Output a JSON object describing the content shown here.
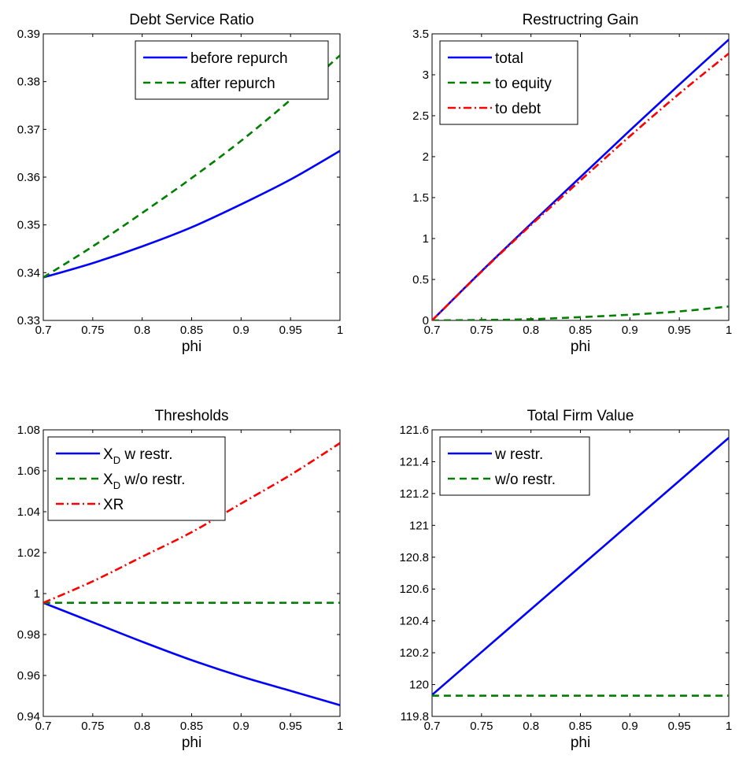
{
  "chart_data": [
    {
      "type": "line",
      "title": "Debt Service Ratio",
      "xlabel": "phi",
      "ylabel": "",
      "xlim": [
        0.7,
        1
      ],
      "ylim": [
        0.33,
        0.39
      ],
      "xticks": [
        "0.7",
        "0.75",
        "0.8",
        "0.85",
        "0.9",
        "0.95",
        "1"
      ],
      "yticks": [
        "0.33",
        "0.34",
        "0.35",
        "0.36",
        "0.37",
        "0.38",
        "0.39"
      ],
      "legend_position": "top-right",
      "x": [
        0.7,
        0.75,
        0.8,
        0.85,
        0.9,
        0.95,
        1.0
      ],
      "series": [
        {
          "name": "before repurch",
          "color": "#0000ff",
          "style": "solid",
          "values": [
            0.339,
            0.342,
            0.3455,
            0.3495,
            0.3543,
            0.3595,
            0.3655
          ]
        },
        {
          "name": "after repurch",
          "color": "#007f00",
          "style": "dashed",
          "values": [
            0.339,
            0.3455,
            0.3525,
            0.3598,
            0.3676,
            0.3762,
            0.3855
          ]
        }
      ]
    },
    {
      "type": "line",
      "title": "Restructring Gain",
      "xlabel": "phi",
      "ylabel": "",
      "xlim": [
        0.7,
        1
      ],
      "ylim": [
        0,
        3.5
      ],
      "xticks": [
        "0.7",
        "0.75",
        "0.8",
        "0.85",
        "0.9",
        "0.95",
        "1"
      ],
      "yticks": [
        "0",
        "0.5",
        "1",
        "1.5",
        "2",
        "2.5",
        "3",
        "3.5"
      ],
      "legend_position": "top-left",
      "x": [
        0.7,
        0.75,
        0.8,
        0.85,
        0.9,
        0.95,
        1.0
      ],
      "series": [
        {
          "name": "total",
          "color": "#0000ff",
          "style": "solid",
          "values": [
            0,
            0.6,
            1.18,
            1.75,
            2.32,
            2.88,
            3.43
          ]
        },
        {
          "name": "to equity",
          "color": "#007f00",
          "style": "dashed",
          "values": [
            0,
            0.005,
            0.015,
            0.04,
            0.07,
            0.11,
            0.17
          ]
        },
        {
          "name": "to debt",
          "color": "#ff0000",
          "style": "dashdot",
          "values": [
            0,
            0.595,
            1.165,
            1.71,
            2.25,
            2.77,
            3.26
          ]
        }
      ]
    },
    {
      "type": "line",
      "title": "Thresholds",
      "xlabel": "phi",
      "ylabel": "",
      "xlim": [
        0.7,
        1
      ],
      "ylim": [
        0.94,
        1.08
      ],
      "xticks": [
        "0.7",
        "0.75",
        "0.8",
        "0.85",
        "0.9",
        "0.95",
        "1"
      ],
      "yticks": [
        "0.94",
        "0.96",
        "0.98",
        "1",
        "1.02",
        "1.04",
        "1.06",
        "1.08"
      ],
      "legend_position": "top-left",
      "x": [
        0.7,
        0.75,
        0.8,
        0.85,
        0.9,
        0.95,
        1.0
      ],
      "series": [
        {
          "name": "X",
          "subscript": "D",
          "suffix": " w restr.",
          "color": "#0000ff",
          "style": "solid",
          "values": [
            0.9955,
            0.986,
            0.9765,
            0.9675,
            0.9595,
            0.9525,
            0.9455
          ]
        },
        {
          "name": "X",
          "subscript": "D",
          "suffix": " w/o restr.",
          "color": "#007f00",
          "style": "dashed",
          "values": [
            0.9955,
            0.9955,
            0.9955,
            0.9955,
            0.9955,
            0.9955,
            0.9955
          ]
        },
        {
          "name": "XR",
          "subscript": "",
          "suffix": "",
          "color": "#ff0000",
          "style": "dashdot",
          "values": [
            0.9955,
            1.006,
            1.018,
            1.03,
            1.044,
            1.058,
            1.0735
          ]
        }
      ]
    },
    {
      "type": "line",
      "title": "Total Firm Value",
      "xlabel": "phi",
      "ylabel": "",
      "xlim": [
        0.7,
        1
      ],
      "ylim": [
        119.8,
        121.6
      ],
      "xticks": [
        "0.7",
        "0.75",
        "0.8",
        "0.85",
        "0.9",
        "0.95",
        "1"
      ],
      "yticks": [
        "119.8",
        "120",
        "120.2",
        "120.4",
        "120.6",
        "120.8",
        "121",
        "121.2",
        "121.4",
        "121.6"
      ],
      "legend_position": "top-left",
      "x": [
        0.7,
        0.75,
        0.8,
        0.85,
        0.9,
        0.95,
        1.0
      ],
      "series": [
        {
          "name": "w restr.",
          "color": "#0000ff",
          "style": "solid",
          "values": [
            119.935,
            120.204,
            120.473,
            120.742,
            121.011,
            121.28,
            121.55
          ]
        },
        {
          "name": "w/o restr.",
          "color": "#007f00",
          "style": "dashed",
          "values": [
            119.93,
            119.93,
            119.93,
            119.93,
            119.93,
            119.93,
            119.93
          ]
        }
      ]
    }
  ]
}
